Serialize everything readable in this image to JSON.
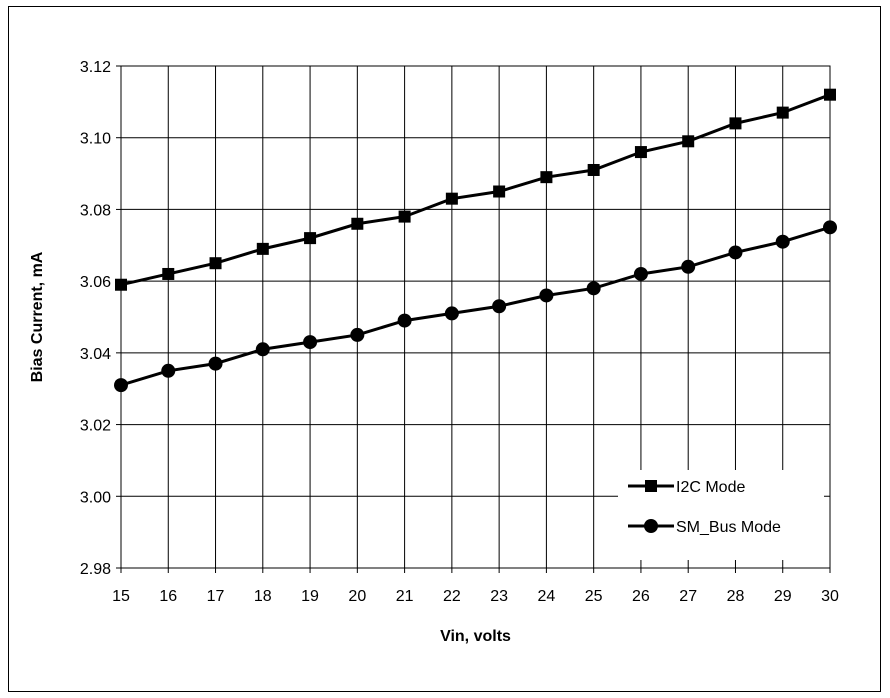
{
  "chart_data": {
    "type": "line",
    "title": "",
    "xlabel": "Vin, volts",
    "ylabel": "Bias Current, mA",
    "x": [
      15,
      16,
      17,
      18,
      19,
      20,
      21,
      22,
      23,
      24,
      25,
      26,
      27,
      28,
      29,
      30
    ],
    "xlim": [
      15,
      30
    ],
    "ylim": [
      2.98,
      3.12
    ],
    "x_ticks": [
      "15",
      "16",
      "17",
      "18",
      "19",
      "20",
      "21",
      "22",
      "23",
      "24",
      "25",
      "26",
      "27",
      "28",
      "29",
      "30"
    ],
    "y_ticks": [
      "2.98",
      "3.00",
      "3.02",
      "3.04",
      "3.06",
      "3.08",
      "3.10",
      "3.12"
    ],
    "grid": true,
    "legend_position": "bottom-right",
    "series": [
      {
        "name": "I2C Mode",
        "marker": "square",
        "color": "#000000",
        "values": [
          3.059,
          3.062,
          3.065,
          3.069,
          3.072,
          3.076,
          3.078,
          3.083,
          3.085,
          3.089,
          3.091,
          3.096,
          3.099,
          3.104,
          3.107,
          3.112
        ]
      },
      {
        "name": "SM_Bus Mode",
        "marker": "circle",
        "color": "#000000",
        "values": [
          3.031,
          3.035,
          3.037,
          3.041,
          3.043,
          3.045,
          3.049,
          3.051,
          3.053,
          3.056,
          3.058,
          3.062,
          3.064,
          3.068,
          3.071,
          3.075
        ]
      }
    ]
  }
}
